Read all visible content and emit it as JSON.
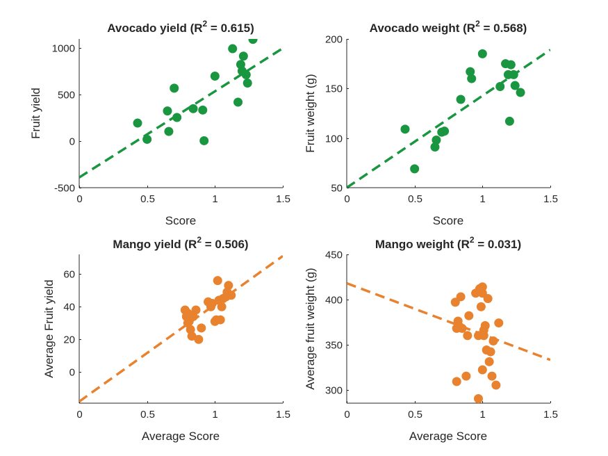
{
  "figure": {
    "background": "#ffffff"
  },
  "chart_data": [
    {
      "id": "avocado-yield",
      "type": "scatter",
      "title_prefix": "Avocado yield (R",
      "title_sup": "2",
      "title_suffix": " = 0.615)",
      "xlabel": "Score",
      "ylabel": "Fruit yield",
      "xlim": [
        0,
        1.5
      ],
      "ylim": [
        -500,
        1100
      ],
      "xticks": [
        0,
        0.5,
        1,
        1.5
      ],
      "xtick_labels": [
        "0",
        "0.5",
        "1",
        "1.5"
      ],
      "yticks": [
        -500,
        0,
        500,
        1000
      ],
      "ytick_labels": [
        "-500",
        "0",
        "500",
        "1000"
      ],
      "color": "#1a9641",
      "x": [
        0.43,
        0.5,
        0.65,
        0.66,
        0.7,
        0.72,
        0.84,
        0.91,
        0.92,
        1.0,
        1.13,
        1.17,
        1.19,
        1.2,
        1.21,
        1.23,
        1.24,
        1.28
      ],
      "y": [
        195,
        20,
        325,
        105,
        570,
        255,
        350,
        335,
        5,
        700,
        995,
        420,
        825,
        755,
        915,
        715,
        625,
        1095
      ],
      "fit": {
        "x": [
          0,
          1.5
        ],
        "y": [
          -390,
          1000
        ]
      }
    },
    {
      "id": "avocado-weight",
      "type": "scatter",
      "title_prefix": "Avocado weight (R",
      "title_sup": "2",
      "title_suffix": " = 0.568)",
      "xlabel": "Score",
      "ylabel": "Fruit weight (g)",
      "xlim": [
        0,
        1.5
      ],
      "ylim": [
        50,
        200
      ],
      "xticks": [
        0,
        0.5,
        1,
        1.5
      ],
      "xtick_labels": [
        "0",
        "0.5",
        "1",
        "1.5"
      ],
      "yticks": [
        50,
        100,
        150,
        200
      ],
      "ytick_labels": [
        "50",
        "100",
        "150",
        "200"
      ],
      "color": "#1a9641",
      "x": [
        0.43,
        0.5,
        0.65,
        0.66,
        0.7,
        0.72,
        0.84,
        0.91,
        0.92,
        1.0,
        1.13,
        1.17,
        1.19,
        1.2,
        1.21,
        1.23,
        1.24,
        1.28
      ],
      "y": [
        109,
        69,
        91,
        98,
        106,
        107,
        139,
        167,
        160,
        185,
        152,
        175,
        164,
        117,
        174,
        164,
        153,
        146
      ],
      "fit": {
        "x": [
          0,
          1.5
        ],
        "y": [
          50,
          189
        ]
      }
    },
    {
      "id": "mango-yield",
      "type": "scatter",
      "title_prefix": "Mango yield (R",
      "title_sup": "2",
      "title_suffix": " = 0.506)",
      "xlabel": "Average Score",
      "ylabel": "Average Fruit yield",
      "xlim": [
        0,
        1.5
      ],
      "ylim": [
        -19,
        72
      ],
      "xticks": [
        0,
        0.5,
        1,
        1.5
      ],
      "xtick_labels": [
        "0",
        "0.5",
        "1",
        "1.5"
      ],
      "yticks": [
        0,
        20,
        40,
        60
      ],
      "ytick_labels": [
        "0",
        "20",
        "40",
        "60"
      ],
      "color": "#e8822e",
      "x": [
        0.78,
        0.79,
        0.8,
        0.8,
        0.81,
        0.82,
        0.83,
        0.84,
        0.88,
        0.86,
        0.9,
        0.95,
        0.97,
        0.98,
        1.0,
        1.01,
        1.02,
        1.03,
        1.04,
        1.05,
        1.06,
        1.08,
        1.09,
        1.1,
        1.12
      ],
      "y": [
        38,
        34,
        30,
        36,
        31,
        26,
        22,
        34,
        20,
        38,
        27,
        43,
        40,
        42,
        31,
        32,
        56,
        44,
        32,
        40,
        45,
        46,
        49,
        53,
        47
      ],
      "fit": {
        "x": [
          0,
          1.5
        ],
        "y": [
          -18,
          71
        ]
      }
    },
    {
      "id": "mango-weight",
      "type": "scatter",
      "title_prefix": "Mango weight (R",
      "title_sup": "2",
      "title_suffix": " = 0.031)",
      "xlabel": "Average Score",
      "ylabel": "Average fruit weight (g)",
      "xlim": [
        0,
        1.5
      ],
      "ylim": [
        285,
        450
      ],
      "xticks": [
        0,
        0.5,
        1,
        1.5
      ],
      "xtick_labels": [
        "0",
        "0.5",
        "1",
        "1.5"
      ],
      "yticks": [
        300,
        350,
        400,
        450
      ],
      "ytick_labels": [
        "300",
        "350",
        "400",
        "450"
      ],
      "color": "#e8822e",
      "x": [
        0.8,
        0.81,
        0.82,
        0.83,
        0.84,
        0.85,
        0.88,
        0.89,
        0.9,
        0.95,
        0.97,
        0.97,
        0.98,
        0.99,
        1.0,
        1.0,
        1.01,
        1.01,
        1.02,
        1.03,
        1.04,
        1.05,
        1.06,
        1.07,
        1.08,
        1.1,
        1.12,
        1.0,
        0.81
      ],
      "y": [
        397,
        368,
        376,
        370,
        403,
        368,
        315,
        360,
        382,
        407,
        290,
        360,
        412,
        392,
        407,
        322,
        366,
        360,
        371,
        344,
        401,
        331,
        342,
        315,
        354,
        305,
        374,
        414,
        309
      ],
      "fit": {
        "x": [
          0,
          1.5
        ],
        "y": [
          418,
          333
        ]
      }
    }
  ]
}
